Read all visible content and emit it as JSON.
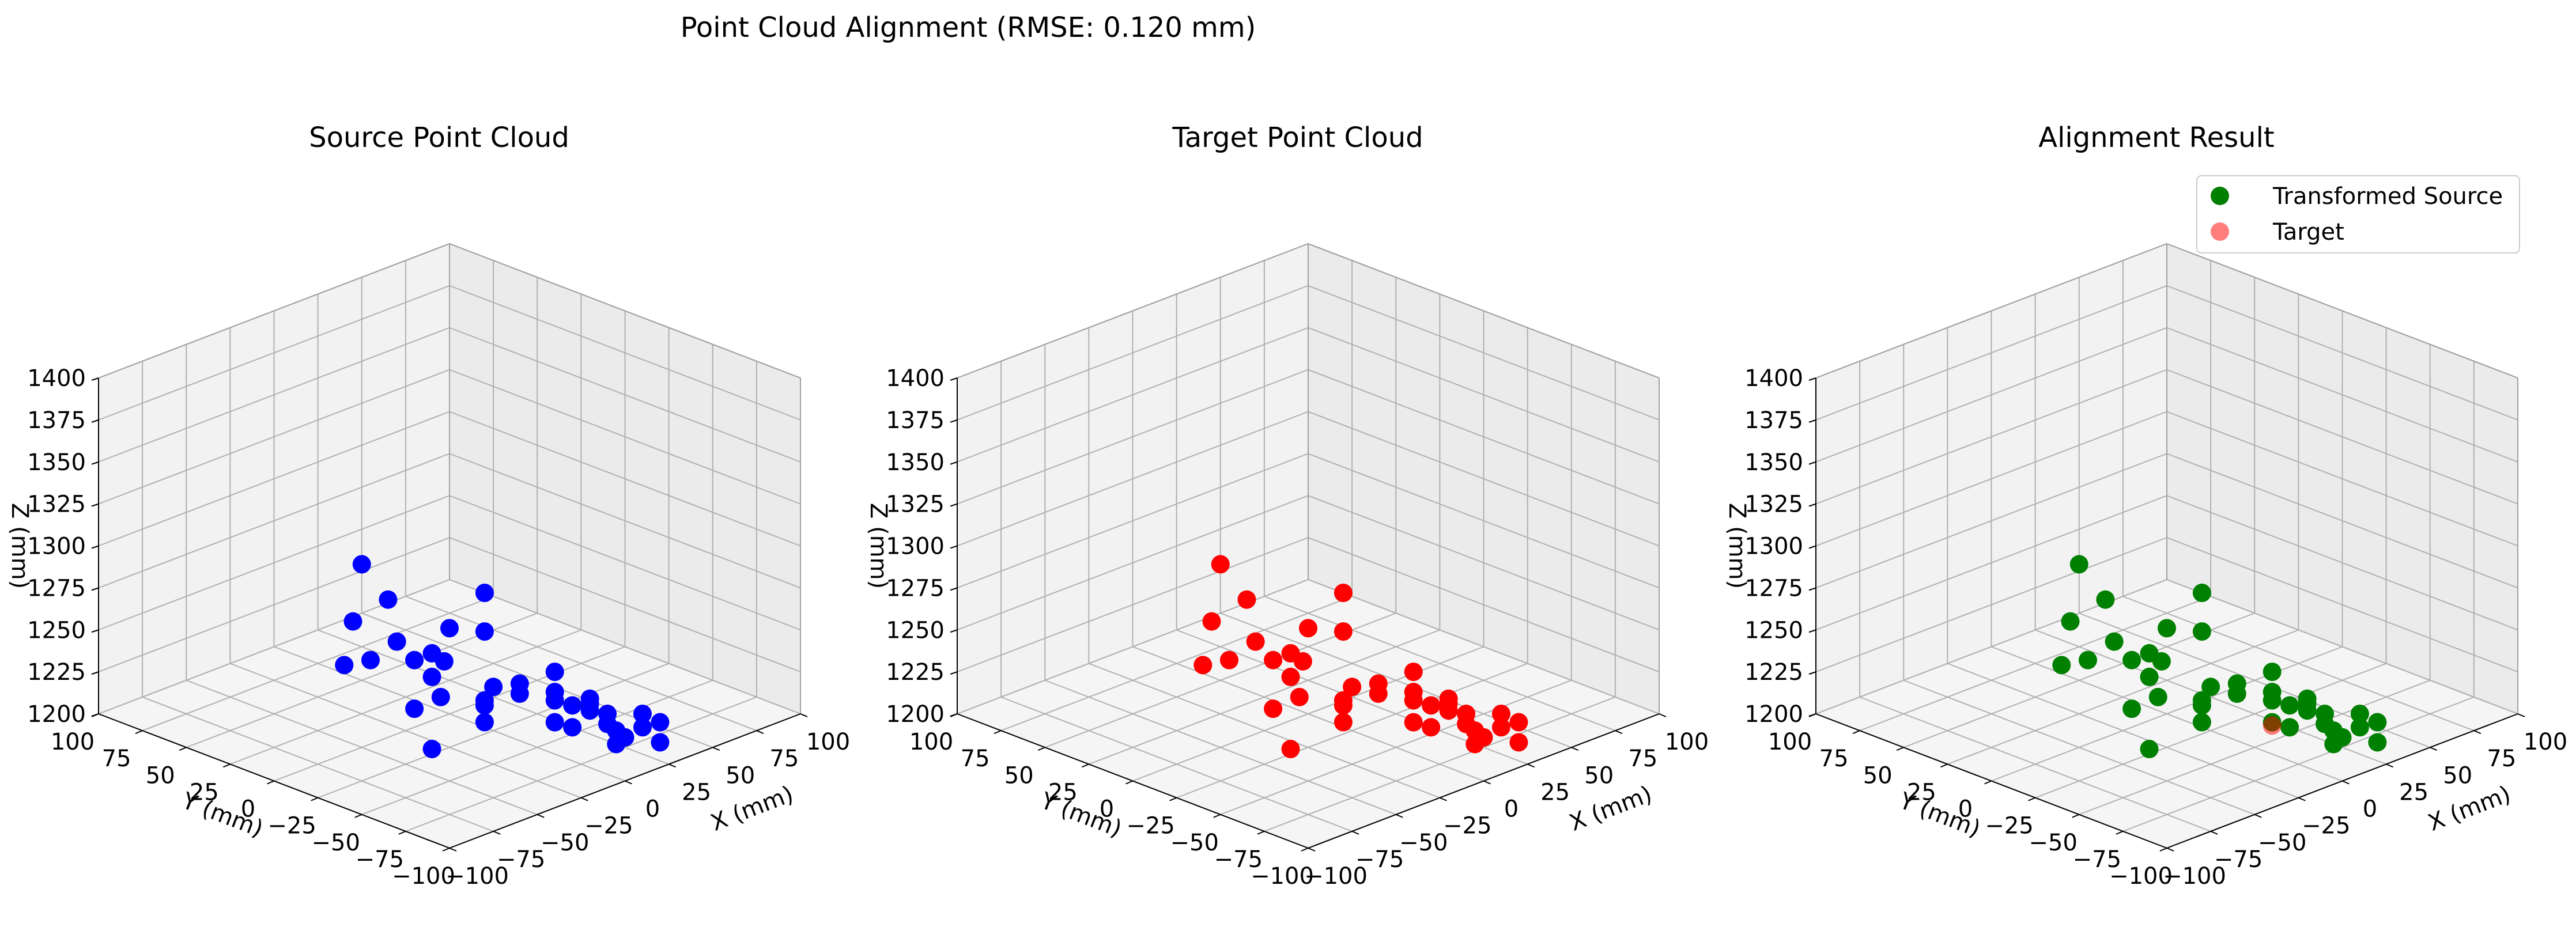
{
  "suptitle": "Point Cloud Alignment (RMSE: 0.120 mm)",
  "chart_data": [
    {
      "type": "scatter3d",
      "title": "Source Point Cloud",
      "xlabel": "X (mm)",
      "ylabel": "Y (mm)",
      "zlabel": "Z (mm)",
      "xlim": [
        -100,
        100
      ],
      "ylim": [
        -100,
        100
      ],
      "zlim": [
        1200,
        1400
      ],
      "xticks": [
        -100,
        -75,
        -50,
        -25,
        0,
        25,
        50,
        75,
        100
      ],
      "yticks": [
        -100,
        -75,
        -50,
        -25,
        0,
        25,
        50,
        75,
        100
      ],
      "zticks": [
        1200,
        1225,
        1250,
        1275,
        1300,
        1325,
        1350,
        1375,
        1400
      ],
      "grid": true,
      "series": [
        {
          "color": "#0000ff",
          "points": [
            {
              "x": -80,
              "y": -70,
              "z": 1296
            },
            {
              "x": -90,
              "y": -40,
              "z": 1341
            },
            {
              "x": -85,
              "y": -82,
              "z": 1298
            },
            {
              "x": -20,
              "y": -40,
              "z": 1296
            },
            {
              "x": -30,
              "y": -50,
              "z": 1281
            },
            {
              "x": -45,
              "y": -70,
              "z": 1262
            },
            {
              "x": -45,
              "y": -10,
              "z": 1290
            },
            {
              "x": -80,
              "y": -20,
              "z": 1269
            },
            {
              "x": -65,
              "y": -10,
              "z": 1285
            },
            {
              "x": -60,
              "y": -80,
              "z": 1251
            },
            {
              "x": -90,
              "y": -80,
              "z": 1247
            },
            {
              "x": -55,
              "y": -35,
              "z": 1239
            },
            {
              "x": -40,
              "y": -60,
              "z": 1245
            },
            {
              "x": -30,
              "y": 0,
              "z": 1255
            },
            {
              "x": -25,
              "y": 20,
              "z": 1234
            },
            {
              "x": -10,
              "y": 10,
              "z": 1232
            },
            {
              "x": 0,
              "y": 0,
              "z": 1251
            },
            {
              "x": -15,
              "y": -35,
              "z": 1228
            },
            {
              "x": 0,
              "y": -60,
              "z": 1249
            },
            {
              "x": 10,
              "y": -30,
              "z": 1226
            },
            {
              "x": -10,
              "y": -70,
              "z": 1240
            },
            {
              "x": 0,
              "y": -70,
              "z": 1233
            },
            {
              "x": 20,
              "y": -60,
              "z": 1225
            },
            {
              "x": 30,
              "y": -80,
              "z": 1220
            },
            {
              "x": 20,
              "y": -20,
              "z": 1212
            },
            {
              "x": -5,
              "y": 0,
              "z": 1212
            },
            {
              "x": 30,
              "y": -90,
              "z": 1207
            },
            {
              "x": 40,
              "y": -70,
              "z": 1204
            },
            {
              "x": 50,
              "y": -70,
              "z": 1203
            },
            {
              "x": 35,
              "y": -60,
              "z": 1200
            },
            {
              "x": 50,
              "y": -40,
              "z": 1190
            },
            {
              "x": 50,
              "y": -30,
              "z": 1198
            },
            {
              "x": 10,
              "y": 20,
              "z": 1210
            },
            {
              "x": 60,
              "y": -40,
              "z": 1178
            },
            {
              "x": 50,
              "y": -20,
              "z": 1180
            },
            {
              "x": 75,
              "y": -20,
              "z": 1160
            },
            {
              "x": 60,
              "y": -30,
              "z": 1188
            },
            {
              "x": 40,
              "y": -20,
              "z": 1205
            },
            {
              "x": 60,
              "y": 0,
              "z": 1171
            },
            {
              "x": 70,
              "y": -10,
              "z": 1178
            }
          ]
        }
      ]
    },
    {
      "type": "scatter3d",
      "title": "Target Point Cloud",
      "xlabel": "X (mm)",
      "ylabel": "Y (mm)",
      "zlabel": "Z (mm)",
      "xlim": [
        -100,
        100
      ],
      "ylim": [
        -100,
        100
      ],
      "zlim": [
        1200,
        1400
      ],
      "xticks": [
        -100,
        -75,
        -50,
        -25,
        0,
        25,
        50,
        75,
        100
      ],
      "yticks": [
        -100,
        -75,
        -50,
        -25,
        0,
        25,
        50,
        75,
        100
      ],
      "zticks": [
        1200,
        1225,
        1250,
        1275,
        1300,
        1325,
        1350,
        1375,
        1400
      ],
      "grid": true,
      "series": [
        {
          "color": "#ff0000",
          "points": [
            {
              "x": -80,
              "y": -70,
              "z": 1296
            },
            {
              "x": -90,
              "y": -40,
              "z": 1341
            },
            {
              "x": -85,
              "y": -82,
              "z": 1298
            },
            {
              "x": -20,
              "y": -40,
              "z": 1296
            },
            {
              "x": -30,
              "y": -50,
              "z": 1281
            },
            {
              "x": -45,
              "y": -70,
              "z": 1262
            },
            {
              "x": -45,
              "y": -10,
              "z": 1290
            },
            {
              "x": -80,
              "y": -20,
              "z": 1269
            },
            {
              "x": -65,
              "y": -10,
              "z": 1285
            },
            {
              "x": -60,
              "y": -80,
              "z": 1251
            },
            {
              "x": -90,
              "y": -80,
              "z": 1247
            },
            {
              "x": -55,
              "y": -35,
              "z": 1239
            },
            {
              "x": -40,
              "y": -60,
              "z": 1245
            },
            {
              "x": -30,
              "y": 0,
              "z": 1255
            },
            {
              "x": -25,
              "y": 20,
              "z": 1234
            },
            {
              "x": -10,
              "y": 10,
              "z": 1232
            },
            {
              "x": 0,
              "y": 0,
              "z": 1251
            },
            {
              "x": -15,
              "y": -35,
              "z": 1228
            },
            {
              "x": 0,
              "y": -60,
              "z": 1249
            },
            {
              "x": 10,
              "y": -30,
              "z": 1226
            },
            {
              "x": -10,
              "y": -70,
              "z": 1240
            },
            {
              "x": 0,
              "y": -70,
              "z": 1233
            },
            {
              "x": 20,
              "y": -60,
              "z": 1225
            },
            {
              "x": 30,
              "y": -80,
              "z": 1220
            },
            {
              "x": 20,
              "y": -20,
              "z": 1212
            },
            {
              "x": -5,
              "y": 0,
              "z": 1212
            },
            {
              "x": 30,
              "y": -90,
              "z": 1207
            },
            {
              "x": 40,
              "y": -70,
              "z": 1204
            },
            {
              "x": 50,
              "y": -70,
              "z": 1203
            },
            {
              "x": 35,
              "y": -60,
              "z": 1200
            },
            {
              "x": 50,
              "y": -40,
              "z": 1190
            },
            {
              "x": 50,
              "y": -30,
              "z": 1198
            },
            {
              "x": 10,
              "y": 20,
              "z": 1210
            },
            {
              "x": 60,
              "y": -40,
              "z": 1178
            },
            {
              "x": 50,
              "y": -20,
              "z": 1180
            },
            {
              "x": 75,
              "y": -20,
              "z": 1160
            },
            {
              "x": 60,
              "y": -30,
              "z": 1188
            },
            {
              "x": 40,
              "y": -20,
              "z": 1205
            },
            {
              "x": 60,
              "y": 0,
              "z": 1171
            },
            {
              "x": 70,
              "y": -10,
              "z": 1178
            }
          ]
        }
      ]
    },
    {
      "type": "scatter3d",
      "title": "Alignment Result",
      "xlabel": "X (mm)",
      "ylabel": "Y (mm)",
      "zlabel": "Z (mm)",
      "xlim": [
        -100,
        100
      ],
      "ylim": [
        -100,
        100
      ],
      "zlim": [
        1200,
        1400
      ],
      "xticks": [
        -100,
        -75,
        -50,
        -25,
        0,
        25,
        50,
        75,
        100
      ],
      "yticks": [
        -100,
        -75,
        -50,
        -25,
        0,
        25,
        50,
        75,
        100
      ],
      "zticks": [
        1200,
        1225,
        1250,
        1275,
        1300,
        1325,
        1350,
        1375,
        1400
      ],
      "grid": true,
      "legend": "top-right",
      "series": [
        {
          "name": "Transformed Source",
          "color": "#008000",
          "points": [
            {
              "x": -80,
              "y": -70,
              "z": 1296
            },
            {
              "x": -90,
              "y": -40,
              "z": 1341
            },
            {
              "x": -85,
              "y": -82,
              "z": 1298
            },
            {
              "x": -20,
              "y": -40,
              "z": 1296
            },
            {
              "x": -30,
              "y": -50,
              "z": 1281
            },
            {
              "x": -45,
              "y": -70,
              "z": 1262
            },
            {
              "x": -45,
              "y": -10,
              "z": 1290
            },
            {
              "x": -80,
              "y": -20,
              "z": 1269
            },
            {
              "x": -65,
              "y": -10,
              "z": 1285
            },
            {
              "x": -60,
              "y": -80,
              "z": 1251
            },
            {
              "x": -90,
              "y": -80,
              "z": 1247
            },
            {
              "x": -55,
              "y": -35,
              "z": 1239
            },
            {
              "x": -40,
              "y": -60,
              "z": 1245
            },
            {
              "x": -30,
              "y": 0,
              "z": 1255
            },
            {
              "x": -25,
              "y": 20,
              "z": 1234
            },
            {
              "x": -10,
              "y": 10,
              "z": 1232
            },
            {
              "x": 0,
              "y": 0,
              "z": 1251
            },
            {
              "x": -15,
              "y": -35,
              "z": 1228
            },
            {
              "x": 0,
              "y": -60,
              "z": 1249
            },
            {
              "x": 10,
              "y": -30,
              "z": 1226
            },
            {
              "x": -10,
              "y": -70,
              "z": 1240
            },
            {
              "x": 0,
              "y": -70,
              "z": 1233
            },
            {
              "x": 20,
              "y": -60,
              "z": 1225
            },
            {
              "x": 30,
              "y": -80,
              "z": 1220
            },
            {
              "x": 20,
              "y": -20,
              "z": 1212
            },
            {
              "x": -5,
              "y": 0,
              "z": 1212
            },
            {
              "x": 30,
              "y": -90,
              "z": 1207
            },
            {
              "x": 40,
              "y": -70,
              "z": 1204
            },
            {
              "x": 50,
              "y": -70,
              "z": 1203
            },
            {
              "x": 35,
              "y": -60,
              "z": 1200
            },
            {
              "x": 50,
              "y": -40,
              "z": 1190
            },
            {
              "x": 50,
              "y": -30,
              "z": 1198
            },
            {
              "x": 10,
              "y": 20,
              "z": 1210
            },
            {
              "x": 60,
              "y": -40,
              "z": 1178
            },
            {
              "x": 50,
              "y": -20,
              "z": 1180
            },
            {
              "x": 75,
              "y": -20,
              "z": 1160
            },
            {
              "x": 60,
              "y": -30,
              "z": 1188
            },
            {
              "x": 40,
              "y": -20,
              "z": 1205
            },
            {
              "x": 60,
              "y": 0,
              "z": 1171
            },
            {
              "x": 70,
              "y": -10,
              "z": 1178
            }
          ]
        },
        {
          "name": "Target",
          "color": "#ff0000",
          "alpha": 0.5,
          "points": [
            {
              "x": 20,
              "y": -40,
              "z": 1201
            }
          ]
        }
      ]
    }
  ]
}
